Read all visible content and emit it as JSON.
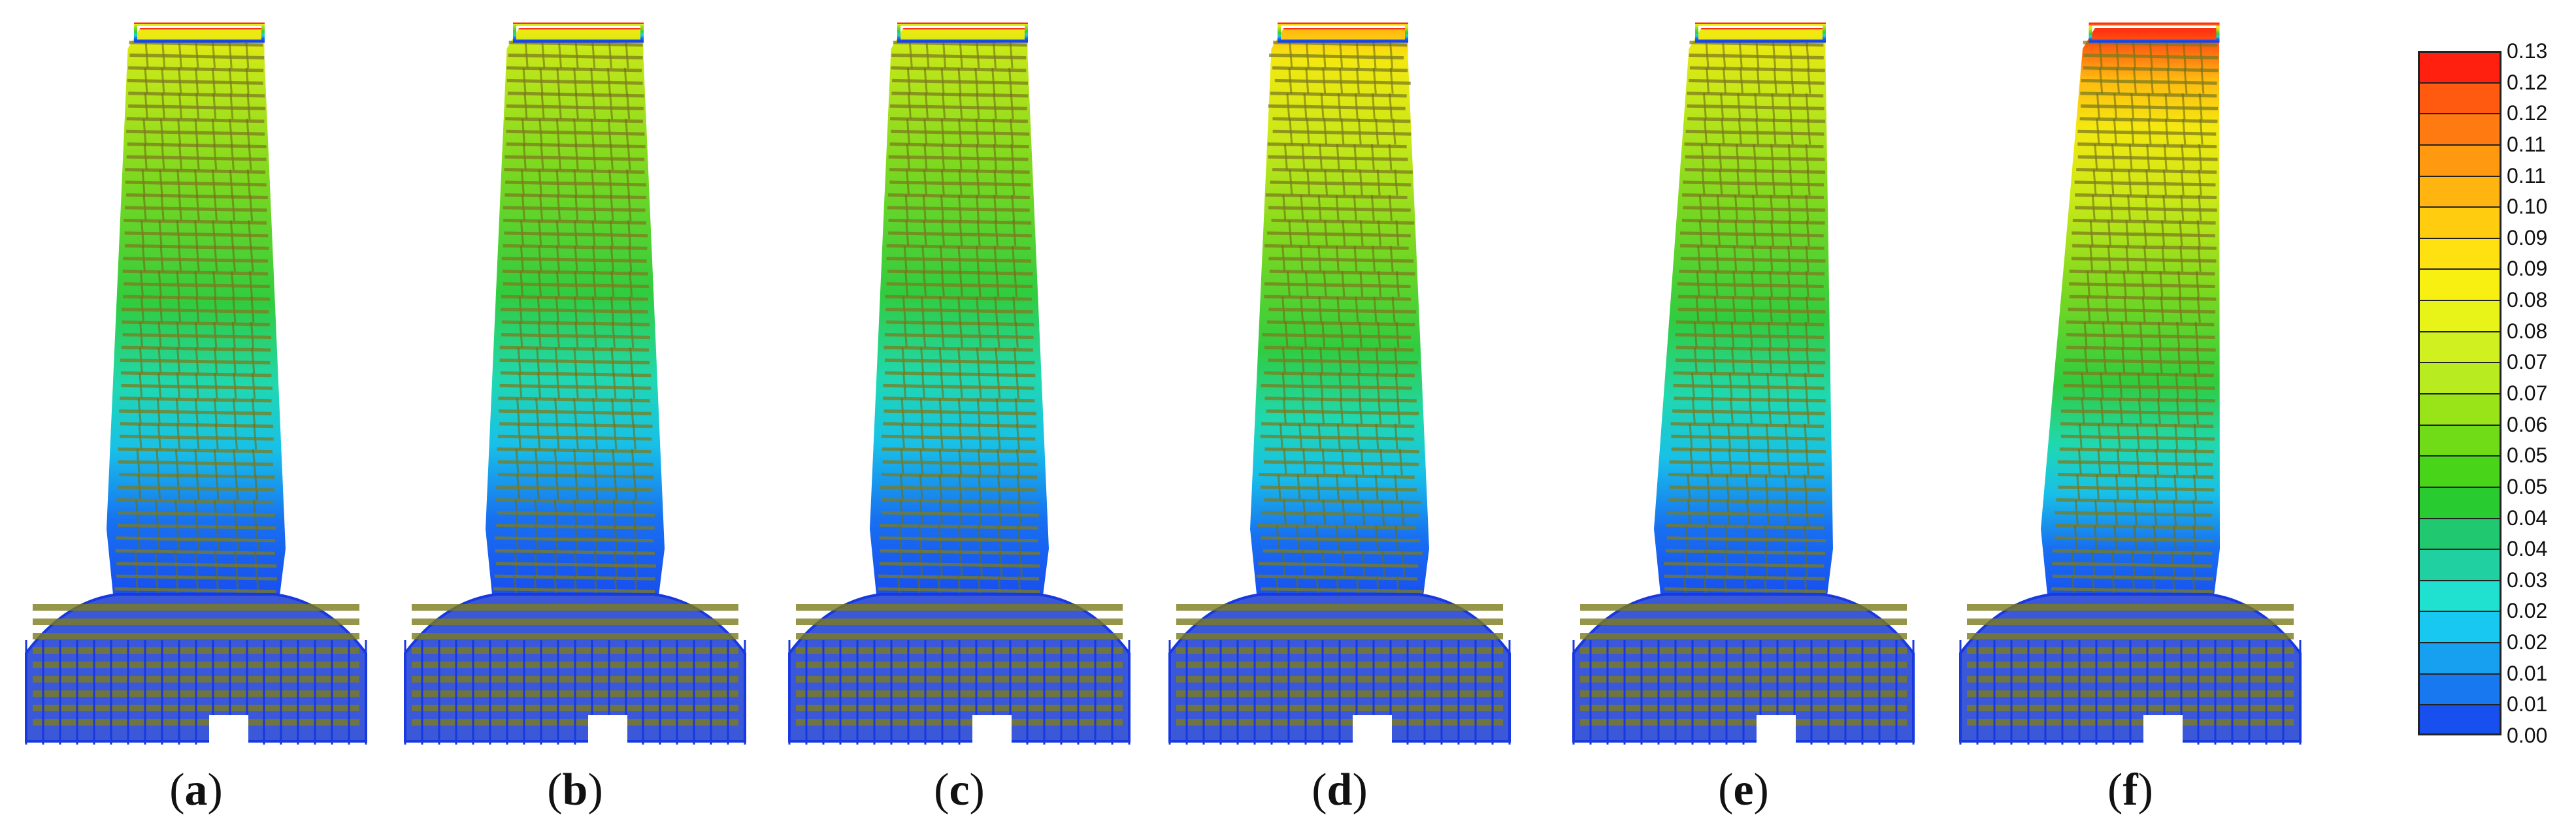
{
  "panels": [
    {
      "label": "a",
      "lean": 0.0,
      "deform": 0.1,
      "top_level": 0.74
    },
    {
      "label": "b",
      "lean": 0.0,
      "deform": 0.1,
      "top_level": 0.72
    },
    {
      "label": "c",
      "lean": 0.0,
      "deform": 0.1,
      "top_level": 0.72
    },
    {
      "label": "d",
      "lean": 0.0,
      "deform": 0.35,
      "top_level": 0.86
    },
    {
      "label": "e",
      "lean": 0.3,
      "deform": 0.1,
      "top_level": 0.78
    },
    {
      "label": "f",
      "lean": 0.45,
      "deform": 0.1,
      "top_level": 0.98
    }
  ],
  "colorbar": {
    "ticks": [
      "0.13",
      "0.12",
      "0.12",
      "0.11",
      "0.11",
      "0.10",
      "0.09",
      "0.09",
      "0.08",
      "0.08",
      "0.07",
      "0.07",
      "0.06",
      "0.05",
      "0.05",
      "0.04",
      "0.04",
      "0.03",
      "0.02",
      "0.02",
      "0.01",
      "0.01",
      "0.00"
    ],
    "colors": [
      "#ff2010",
      "#ff5a10",
      "#ff7a10",
      "#ff9a10",
      "#ffb410",
      "#ffcc10",
      "#ffe010",
      "#f8f010",
      "#e8f418",
      "#d0f020",
      "#b8ec20",
      "#98e418",
      "#70dc18",
      "#48d418",
      "#28cc30",
      "#20c870",
      "#20d0a0",
      "#20e0d0",
      "#18c8f0",
      "#18a0f0",
      "#1878f0",
      "#1850f0",
      "#1830f0"
    ]
  }
}
